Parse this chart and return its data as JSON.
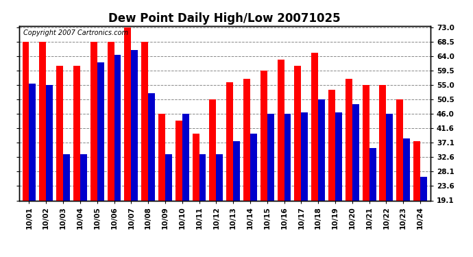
{
  "title": "Dew Point Daily High/Low 20071025",
  "copyright": "Copyright 2007 Cartronics.com",
  "dates": [
    "10/01",
    "10/02",
    "10/03",
    "10/04",
    "10/05",
    "10/06",
    "10/07",
    "10/08",
    "10/09",
    "10/10",
    "10/11",
    "10/12",
    "10/13",
    "10/14",
    "10/15",
    "10/16",
    "10/17",
    "10/18",
    "10/19",
    "10/20",
    "10/21",
    "10/22",
    "10/23",
    "10/24"
  ],
  "highs": [
    68.5,
    68.5,
    61.0,
    61.0,
    68.5,
    68.5,
    73.0,
    68.5,
    46.0,
    44.0,
    40.0,
    50.5,
    56.0,
    57.0,
    59.5,
    63.0,
    61.0,
    65.0,
    53.5,
    57.0,
    55.0,
    55.0,
    50.5,
    37.5
  ],
  "lows": [
    55.5,
    55.0,
    33.5,
    33.5,
    62.0,
    64.5,
    66.0,
    52.5,
    33.5,
    46.0,
    33.5,
    33.5,
    37.5,
    40.0,
    46.0,
    46.0,
    46.5,
    50.5,
    46.5,
    49.0,
    35.5,
    46.0,
    38.5,
    26.5
  ],
  "high_color": "#ff0000",
  "low_color": "#0000cc",
  "bg_color": "#ffffff",
  "plot_bg_color": "#ffffff",
  "grid_color": "#888888",
  "ymin": 19.1,
  "ymax": 73.0,
  "yticks": [
    19.1,
    23.6,
    28.1,
    32.6,
    37.1,
    41.6,
    46.0,
    50.5,
    55.0,
    59.5,
    64.0,
    68.5,
    73.0
  ],
  "title_fontsize": 12,
  "label_fontsize": 7.5,
  "copyright_fontsize": 7
}
